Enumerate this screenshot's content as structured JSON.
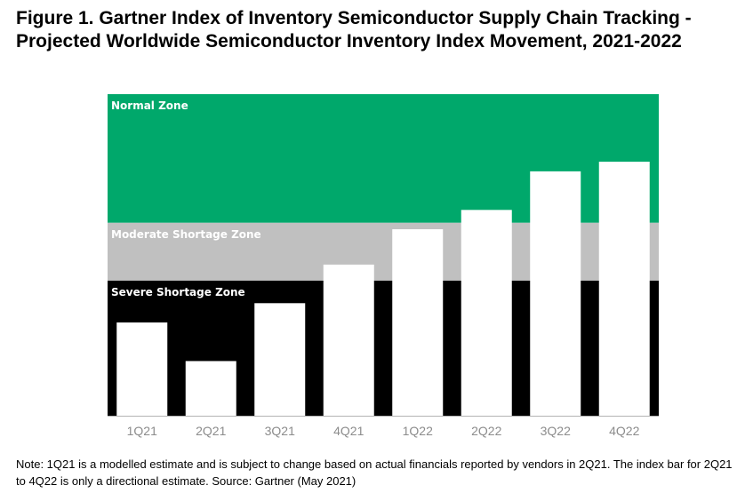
{
  "title": "Figure 1. Gartner Index of Inventory Semiconductor Supply Chain Tracking - Projected Worldwide Semiconductor Inventory Index Movement, 2021-2022",
  "note": "Note: 1Q21 is a modelled estimate and is subject to change based on actual financials reported by vendors in 2Q21. The index bar for 2Q21 to 4Q22 is only a directional estimate. Source: Gartner (May 2021)",
  "colors": {
    "normal": "#00a86b",
    "moderate": "#c0c0c0",
    "severe": "#000000",
    "bar": "#ffffff",
    "axis": "#b3b3b3"
  },
  "chart_data": {
    "type": "bar",
    "title": "Figure 1. Gartner Index of Inventory Semiconductor Supply Chain Tracking - Projected Worldwide Semiconductor Inventory Index Movement, 2021-2022",
    "xlabel": "",
    "ylabel": "",
    "categories": [
      "1Q21",
      "2Q21",
      "3Q21",
      "4Q21",
      "1Q22",
      "2Q22",
      "3Q22",
      "4Q22"
    ],
    "values": [
      29,
      17,
      35,
      47,
      58,
      64,
      76,
      79
    ],
    "ylim": [
      0,
      100
    ],
    "zones": [
      {
        "name": "Normal Zone",
        "from": 60,
        "to": 100
      },
      {
        "name": "Moderate Shortage Zone",
        "from": 42,
        "to": 60
      },
      {
        "name": "Severe Shortage Zone",
        "from": 0,
        "to": 42
      }
    ]
  }
}
